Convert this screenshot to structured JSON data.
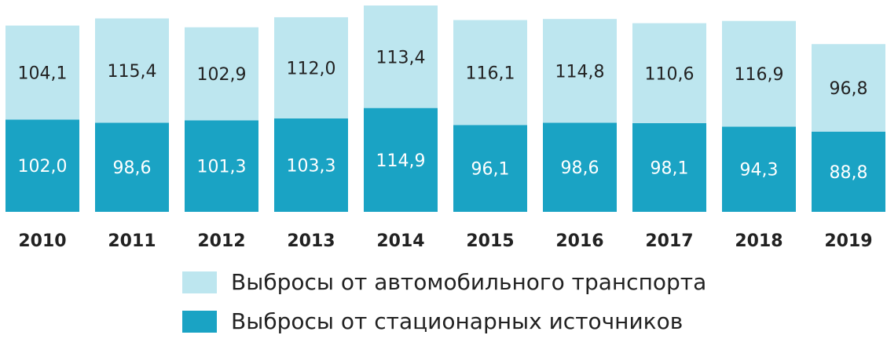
{
  "chart_data": {
    "type": "bar",
    "stacked": true,
    "categories": [
      "2010",
      "2011",
      "2012",
      "2013",
      "2014",
      "2015",
      "2016",
      "2017",
      "2018",
      "2019"
    ],
    "series": [
      {
        "name": "Выбросы от стационарных источников",
        "color": "#1aa3c4",
        "values": [
          102.0,
          98.6,
          101.3,
          103.3,
          114.9,
          96.1,
          98.6,
          98.1,
          94.3,
          88.8
        ],
        "labels": [
          "102,0",
          "98,6",
          "101,3",
          "103,3",
          "114,9",
          "96,1",
          "98,6",
          "98,1",
          "94,3",
          "88,8"
        ]
      },
      {
        "name": "Выбросы от автомобильного транспорта",
        "color": "#bde6ef",
        "values": [
          104.1,
          115.4,
          102.9,
          112.0,
          113.4,
          116.1,
          114.8,
          110.6,
          116.9,
          96.8
        ],
        "labels": [
          "104,1",
          "115,4",
          "102,9",
          "112,0",
          "113,4",
          "116,1",
          "114,8",
          "110,6",
          "116,9",
          "96,8"
        ]
      }
    ],
    "ylim": [
      0,
      230
    ],
    "grid": false,
    "legend": "bottom-center"
  },
  "legend": {
    "items": [
      {
        "label": "Выбросы от автомобильного транспорта",
        "color": "#bde6ef"
      },
      {
        "label": "Выбросы от стационарных источников",
        "color": "#1aa3c4"
      }
    ]
  }
}
